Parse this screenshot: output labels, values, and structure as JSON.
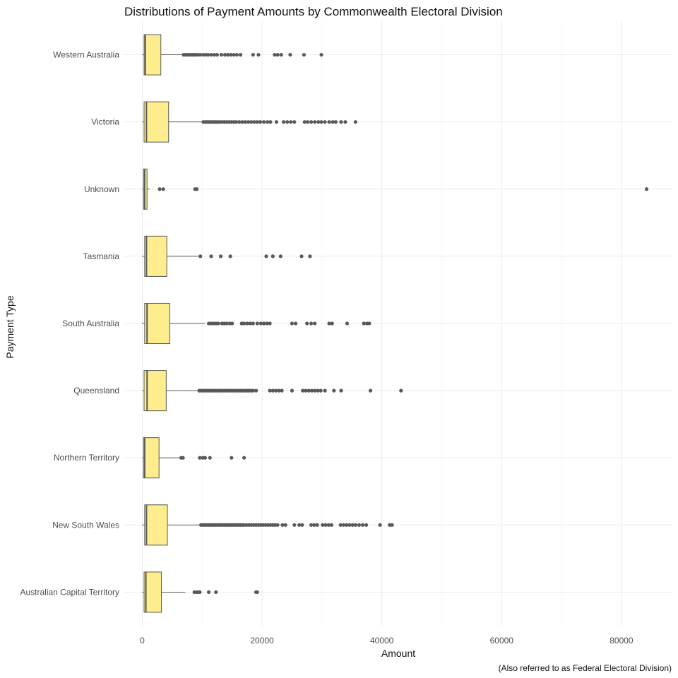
{
  "chart_data": {
    "type": "boxplot",
    "title": "Distributions of Payment Amounts by Commonwealth Electoral Division",
    "xlabel": "Amount",
    "ylabel": "Payment Type",
    "caption": "(Also referred to as Federal Electoral Division)",
    "xlim": [
      -3000,
      88500
    ],
    "xticks": [
      0,
      20000,
      40000,
      60000,
      80000
    ],
    "xtick_labels": [
      "0",
      "20000",
      "40000",
      "60000",
      "80000"
    ],
    "grid": true,
    "orientation": "horizontal",
    "box_fill": "#fded8d",
    "box_stroke": "#595959",
    "outlier_color": "#595959",
    "categories": [
      "Western Australia",
      "Victoria",
      "Unknown",
      "Tasmania",
      "South Australia",
      "Queensland",
      "Northern Territory",
      "New South Wales",
      "Australian Capital Territory"
    ],
    "boxes": [
      {
        "category": "Western Australia",
        "min": 0,
        "q1": 300,
        "median": 500,
        "q3": 3100,
        "max": 6900,
        "outliers": [
          6900,
          7200,
          7500,
          7800,
          8100,
          8400,
          8700,
          9000,
          9300,
          9700,
          10200,
          10600,
          11000,
          11500,
          12000,
          12500,
          13200,
          13800,
          14300,
          14800,
          15300,
          15800,
          16400,
          18500,
          19400,
          22100,
          22600,
          23200,
          24700,
          27000,
          29900
        ]
      },
      {
        "category": "Victoria",
        "min": 0,
        "q1": 300,
        "median": 700,
        "q3": 4400,
        "max": 10000,
        "outliers": [
          10200,
          10500,
          10800,
          11100,
          11400,
          11700,
          12000,
          12300,
          12600,
          12900,
          13300,
          13700,
          14100,
          14500,
          14900,
          15300,
          15700,
          16200,
          16700,
          17200,
          17700,
          18200,
          18700,
          19200,
          19700,
          20300,
          20900,
          21400,
          22400,
          23600,
          24200,
          24800,
          25400,
          27100,
          27600,
          28200,
          28800,
          29400,
          29900,
          30500,
          31200,
          31800,
          32300,
          33200,
          33900,
          35600
        ]
      },
      {
        "category": "Unknown",
        "min": 0,
        "q1": 200,
        "median": 400,
        "q3": 800,
        "max": 1200,
        "outliers": [
          2900,
          3500,
          8800,
          9100,
          84200
        ]
      },
      {
        "category": "Tasmania",
        "min": 0,
        "q1": 400,
        "median": 700,
        "q3": 4100,
        "max": 9500,
        "outliers": [
          9700,
          11500,
          13100,
          14700,
          20700,
          21800,
          23100,
          26600,
          28000
        ]
      },
      {
        "category": "South Australia",
        "min": 0,
        "q1": 400,
        "median": 800,
        "q3": 4600,
        "max": 10500,
        "outliers": [
          11100,
          11500,
          11900,
          12300,
          12700,
          13300,
          13700,
          14100,
          14600,
          15000,
          16600,
          17000,
          17500,
          18000,
          18500,
          19200,
          19800,
          20300,
          20800,
          21300,
          25000,
          25600,
          27500,
          28200,
          28800,
          31200,
          31700,
          34200,
          37000,
          37500,
          37900
        ]
      },
      {
        "category": "Queensland",
        "min": 0,
        "q1": 300,
        "median": 800,
        "q3": 4000,
        "max": 9300,
        "outliers": [
          9500,
          9800,
          10100,
          10400,
          10700,
          11000,
          11300,
          11600,
          11900,
          12200,
          12500,
          12800,
          13100,
          13400,
          13700,
          14000,
          14300,
          14600,
          14900,
          15200,
          15500,
          15800,
          16100,
          16400,
          16700,
          17000,
          17300,
          17600,
          17900,
          18200,
          18500,
          19000,
          21300,
          21800,
          22300,
          22800,
          23300,
          25000,
          26800,
          27300,
          27800,
          28300,
          28800,
          29300,
          29800,
          30500,
          32000,
          33200,
          38100,
          43200
        ]
      },
      {
        "category": "Northern Territory",
        "min": 0,
        "q1": 200,
        "median": 400,
        "q3": 2800,
        "max": 6500,
        "outliers": [
          6500,
          6800,
          9600,
          10100,
          10500,
          11300,
          14900,
          17000
        ]
      },
      {
        "category": "New South Wales",
        "min": 0,
        "q1": 400,
        "median": 700,
        "q3": 4200,
        "max": 9600,
        "outliers": [
          9800,
          10100,
          10400,
          10700,
          11000,
          11300,
          11600,
          11900,
          12200,
          12500,
          12800,
          13100,
          13400,
          13700,
          14000,
          14300,
          14600,
          14900,
          15200,
          15500,
          15800,
          16100,
          16400,
          16700,
          17000,
          17400,
          17800,
          18200,
          18600,
          19000,
          19400,
          19800,
          20200,
          20600,
          21000,
          21400,
          21800,
          22200,
          22600,
          23400,
          23900,
          25400,
          26200,
          26700,
          28200,
          28700,
          29200,
          30100,
          30600,
          31100,
          31600,
          33100,
          33600,
          34100,
          34600,
          35100,
          35600,
          36200,
          36800,
          37400,
          39700,
          41300,
          41700
        ]
      },
      {
        "category": "Australian Capital Territory",
        "min": 0,
        "q1": 300,
        "median": 600,
        "q3": 3200,
        "max": 7200,
        "outliers": [
          8700,
          9000,
          9300,
          9600,
          11100,
          12300,
          19000,
          19200
        ]
      }
    ]
  }
}
